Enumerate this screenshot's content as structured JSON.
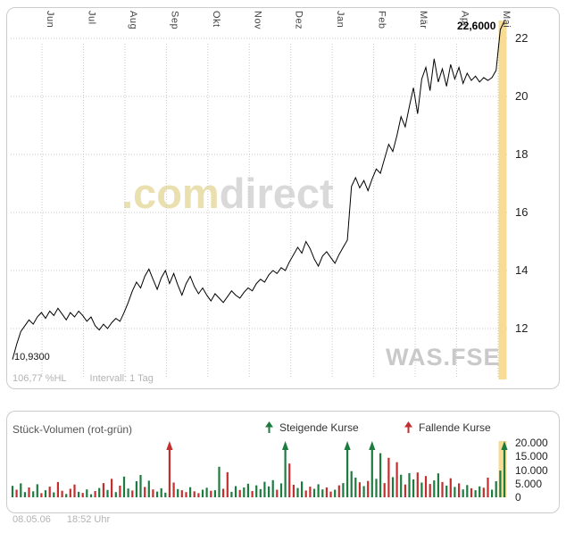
{
  "footer": {
    "date": "08.05.06",
    "time": "18:52 Uhr"
  },
  "price_panel": {
    "watermark_brand_com": ".com",
    "watermark_brand_direct": "direct",
    "watermark_symbol": "WAS.FSE",
    "footer_hl": "106,77 %HL",
    "footer_interval": "Intervall: 1 Tag"
  },
  "colors": {
    "line": "#000000",
    "grid": "#c9c9c9",
    "highlight": "#f8dc96",
    "up": "#1e7b40",
    "down": "#c22f2e",
    "watermark_yellow": "#eadfae",
    "watermark_gray": "#d9d9d9",
    "muted_text": "#b3b3b3"
  },
  "chart_data": [
    {
      "type": "line",
      "name": "price",
      "title": "",
      "x_labels": [
        "Jun",
        "Jul",
        "Aug",
        "Sep",
        "Okt",
        "Nov",
        "Dez",
        "Jan",
        "Feb",
        "Mär",
        "Apr",
        "Mai"
      ],
      "y_ticks": [
        12,
        14,
        16,
        18,
        20,
        22
      ],
      "ylim": [
        10.6,
        22.9
      ],
      "last_price_label": "22,6000",
      "low_price_label": "10,9300",
      "values": [
        10.93,
        11.45,
        11.9,
        12.1,
        12.3,
        12.15,
        12.4,
        12.55,
        12.35,
        12.6,
        12.45,
        12.7,
        12.5,
        12.3,
        12.55,
        12.4,
        12.6,
        12.45,
        12.25,
        12.4,
        12.1,
        11.95,
        12.15,
        12.0,
        12.2,
        12.35,
        12.25,
        12.55,
        12.9,
        13.3,
        13.6,
        13.4,
        13.8,
        14.05,
        13.7,
        13.35,
        13.75,
        14.0,
        13.55,
        13.9,
        13.5,
        13.15,
        13.55,
        13.8,
        13.45,
        13.2,
        13.4,
        13.15,
        12.95,
        13.2,
        13.05,
        12.9,
        13.1,
        13.3,
        13.15,
        13.05,
        13.25,
        13.4,
        13.3,
        13.55,
        13.7,
        13.6,
        13.85,
        14.0,
        13.9,
        14.1,
        14.0,
        14.3,
        14.55,
        14.8,
        14.6,
        15.0,
        14.75,
        14.4,
        14.15,
        14.5,
        14.65,
        14.45,
        14.25,
        14.55,
        14.8,
        15.05,
        16.9,
        17.2,
        16.85,
        17.1,
        16.75,
        17.15,
        17.5,
        17.35,
        17.85,
        18.35,
        18.1,
        18.65,
        19.3,
        18.95,
        19.65,
        20.3,
        19.4,
        20.6,
        21.0,
        20.2,
        21.3,
        20.5,
        20.95,
        20.35,
        21.1,
        20.6,
        21.0,
        20.45,
        20.8,
        20.55,
        20.7,
        20.5,
        20.65,
        20.55,
        20.65,
        20.9,
        22.3,
        22.6
      ]
    },
    {
      "type": "bar",
      "name": "volume",
      "title": "Stück-Volumen (rot-grün)",
      "legend": [
        {
          "label": "Steigende Kurse",
          "color": "#1e7b40"
        },
        {
          "label": "Fallende Kurse",
          "color": "#c22f2e"
        }
      ],
      "legend_position": "top",
      "y_ticks": [
        {
          "value": 20000,
          "label": "20.000"
        },
        {
          "value": 15000,
          "label": "15.000"
        },
        {
          "value": 10000,
          "label": "10.000"
        },
        {
          "value": 5000,
          "label": "5.000"
        },
        {
          "value": 0,
          "label": "0"
        }
      ],
      "ylim": [
        0,
        20000
      ],
      "signed_values": [
        4200,
        -2800,
        5100,
        1900,
        -3600,
        2200,
        4800,
        -1500,
        2600,
        -3900,
        1800,
        -5600,
        -2400,
        1200,
        -3100,
        -4700,
        2000,
        -1600,
        2900,
        1100,
        -2300,
        3400,
        -5200,
        2700,
        -6800,
        1900,
        -4300,
        7600,
        3200,
        -2500,
        5900,
        8200,
        -3800,
        6100,
        -2900,
        2100,
        3300,
        1700,
        -21000,
        -5400,
        3000,
        -2600,
        -1900,
        3700,
        -2200,
        -1500,
        2800,
        3500,
        -2400,
        2600,
        11200,
        -3100,
        -9200,
        2000,
        4100,
        -2700,
        3600,
        5000,
        -2300,
        4400,
        3000,
        5700,
        4000,
        6300,
        -2800,
        5100,
        20500,
        -12400,
        -4600,
        3400,
        5800,
        -2500,
        -3900,
        3100,
        4800,
        2900,
        -3600,
        -2100,
        2800,
        -4400,
        5200,
        21000,
        9600,
        7200,
        -5500,
        4100,
        -6000,
        20500,
        6800,
        16200,
        -5200,
        -14500,
        7400,
        -12900,
        8300,
        -4700,
        8900,
        6600,
        -9100,
        5400,
        -7800,
        -4900,
        6200,
        8800,
        -5600,
        4300,
        -7000,
        3800,
        -5100,
        2900,
        4500,
        -3300,
        2600,
        4000,
        -3500,
        -7200,
        2800,
        5900,
        9800,
        21000
      ]
    }
  ]
}
